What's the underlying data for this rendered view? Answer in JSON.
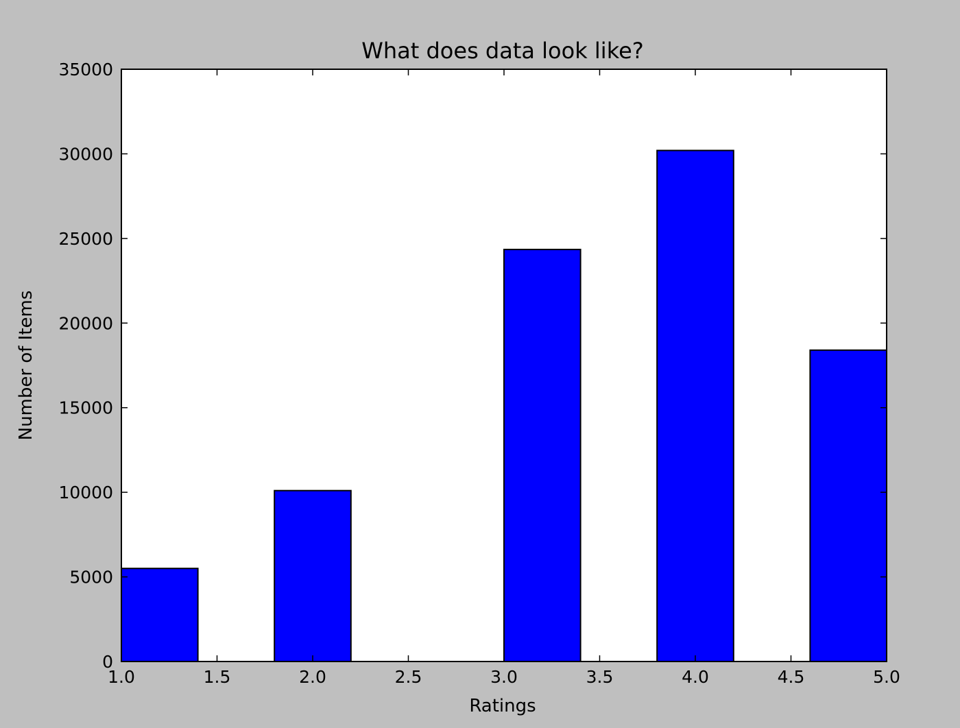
{
  "chart_data": {
    "type": "bar",
    "title": "What does data look like?",
    "xlabel": "Ratings",
    "ylabel": "Number of Items",
    "xlim": [
      1.0,
      5.0
    ],
    "ylim": [
      0,
      35000
    ],
    "xticks": [
      "1.0",
      "1.5",
      "2.0",
      "2.5",
      "3.0",
      "3.5",
      "4.0",
      "4.5",
      "5.0"
    ],
    "yticks": [
      "0",
      "5000",
      "10000",
      "15000",
      "20000",
      "25000",
      "30000",
      "35000"
    ],
    "bins": [
      {
        "from": 1.0,
        "to": 1.4,
        "value": 5500
      },
      {
        "from": 1.4,
        "to": 1.8,
        "value": 0
      },
      {
        "from": 1.8,
        "to": 2.2,
        "value": 10100
      },
      {
        "from": 2.2,
        "to": 2.6,
        "value": 0
      },
      {
        "from": 2.6,
        "to": 3.0,
        "value": 0
      },
      {
        "from": 3.0,
        "to": 3.4,
        "value": 24350
      },
      {
        "from": 3.4,
        "to": 3.8,
        "value": 0
      },
      {
        "from": 3.8,
        "to": 4.2,
        "value": 30200
      },
      {
        "from": 4.2,
        "to": 4.6,
        "value": 0
      },
      {
        "from": 4.6,
        "to": 5.0,
        "value": 18400
      }
    ],
    "grid": false,
    "legend": "none",
    "colors": {
      "bar": "#0000ff",
      "edge": "#000000",
      "background": "#bfbfbf",
      "plot_area": "#ffffff"
    }
  }
}
